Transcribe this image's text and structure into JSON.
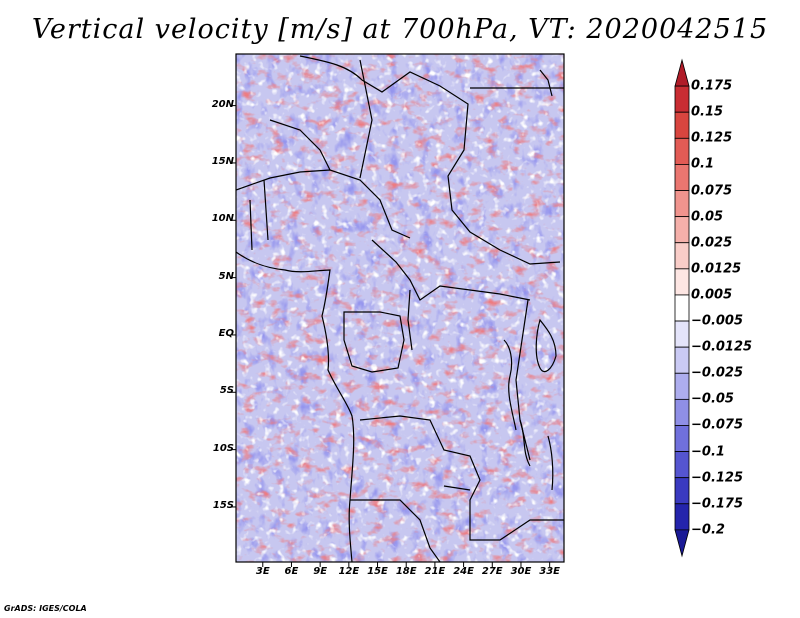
{
  "title": "Vertical velocity [m/s] at 700hPa, VT: 2020042515",
  "footer": "GrADS: IGES/COLA",
  "map": {
    "lat_labels": [
      "20N",
      "15N",
      "10N",
      "5N",
      "EQ",
      "5S",
      "10S",
      "15S"
    ],
    "lon_labels": [
      "3E",
      "6E",
      "9E",
      "12E",
      "15E",
      "18E",
      "21E",
      "24E",
      "27E",
      "30E",
      "33E"
    ],
    "lat_range": [
      -19.8,
      24.5
    ],
    "lon_range": [
      0.2,
      34.5
    ]
  },
  "colorbar": {
    "labels": [
      "0.175",
      "0.15",
      "0.125",
      "0.1",
      "0.075",
      "0.05",
      "0.025",
      "0.0125",
      "0.005",
      "−0.005",
      "−0.0125",
      "−0.025",
      "−0.05",
      "−0.075",
      "−0.1",
      "−0.125",
      "−0.175",
      "−0.2"
    ],
    "colors": [
      "#b01c28",
      "#c92d33",
      "#d8453f",
      "#e25b55",
      "#ea7670",
      "#f0948e",
      "#f5b0aa",
      "#f9cdc8",
      "#fde6e3",
      "#ffffff",
      "#e4e4fa",
      "#cacaf4",
      "#adadee",
      "#8f8fe6",
      "#7070dc",
      "#5555d0",
      "#3a3ac0",
      "#2424ac",
      "#1a1a96"
    ]
  }
}
